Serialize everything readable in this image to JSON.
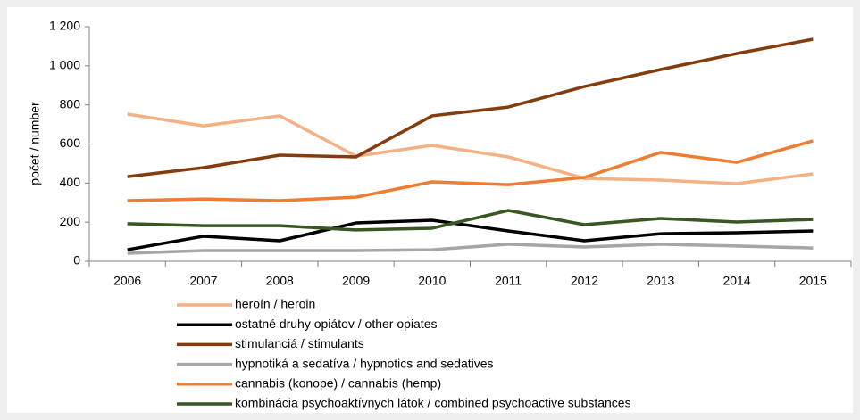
{
  "chart_data": {
    "type": "line",
    "ylabel": "počet / number",
    "categories": [
      "2006",
      "2007",
      "2008",
      "2009",
      "2010",
      "2011",
      "2012",
      "2013",
      "2014",
      "2015"
    ],
    "ylim": [
      0,
      1200
    ],
    "yticks": [
      0,
      200,
      400,
      600,
      800,
      {
        "value": 1000,
        "label": "1 000"
      },
      {
        "value": 1200,
        "label": "1 200"
      }
    ],
    "grid": false,
    "legend": "bottom",
    "series": [
      {
        "name": "heroín / heroin",
        "color": "#f4b183",
        "values": [
          753,
          693,
          744,
          538,
          593,
          534,
          424,
          415,
          397,
          447
        ]
      },
      {
        "name": "ostatné druhy opiátov / other opiates",
        "color": "#000000",
        "values": [
          59,
          128,
          105,
          196,
          210,
          155,
          105,
          141,
          146,
          155
        ]
      },
      {
        "name": "stimulanciá / stimulants",
        "color": "#843c0c",
        "values": [
          433,
          479,
          543,
          534,
          744,
          789,
          894,
          981,
          1063,
          1136
        ]
      },
      {
        "name": "hypnotiká a sedatíva / hypnotics and sedatives",
        "color": "#a6a6a6",
        "values": [
          41,
          55,
          55,
          55,
          59,
          87,
          73,
          87,
          78,
          68
        ]
      },
      {
        "name": "cannabis (konope) / cannabis (hemp)",
        "color": "#ed7d31",
        "values": [
          310,
          319,
          310,
          328,
          406,
          392,
          429,
          557,
          506,
          616
        ]
      },
      {
        "name": "kombinácia psychoaktívnych látok  / combined psychoactive substances",
        "color": "#385723",
        "values": [
          192,
          182,
          182,
          160,
          169,
          260,
          187,
          219,
          201,
          214
        ]
      }
    ]
  }
}
